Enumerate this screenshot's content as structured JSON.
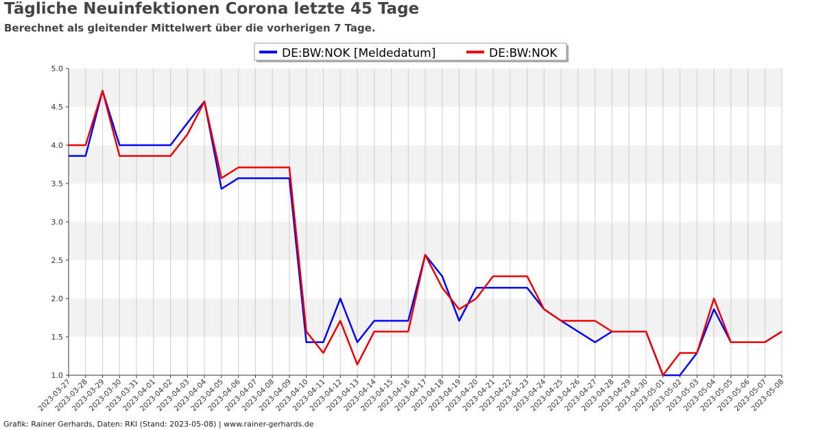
{
  "page": {
    "title": "Tägliche Neuinfektionen Corona letzte 45 Tage",
    "subtitle": "Berechnet als gleitender Mittelwert über die vorherigen 7 Tage.",
    "footer": "Grafik: Rainer Gerhards, Daten: RKI (Stand: 2023-05-08) | www.rainer-gerhards.de"
  },
  "chart_data": {
    "type": "line",
    "title": "Tägliche Neuinfektionen Corona letzte 45 Tage",
    "subtitle": "Berechnet als gleitender Mittelwert über die vorherigen 7 Tage.",
    "xlabel": "",
    "ylabel": "",
    "ylim": [
      1.0,
      5.0
    ],
    "yticks": [
      "1.0",
      "1.5",
      "2.0",
      "2.5",
      "3.0",
      "3.5",
      "4.0",
      "4.5",
      "5.0"
    ],
    "grid": true,
    "legend_position": "top-center",
    "x": [
      "2023-03-27",
      "2023-03-28",
      "2023-03-29",
      "2023-03-30",
      "2023-03-31",
      "2023-04-01",
      "2023-04-02",
      "2023-04-03",
      "2023-04-04",
      "2023-04-05",
      "2023-04-06",
      "2023-04-07",
      "2023-04-08",
      "2023-04-09",
      "2023-04-10",
      "2023-04-11",
      "2023-04-12",
      "2023-04-13",
      "2023-04-14",
      "2023-04-15",
      "2023-04-16",
      "2023-04-17",
      "2023-04-18",
      "2023-04-19",
      "2023-04-20",
      "2023-04-21",
      "2023-04-22",
      "2023-04-23",
      "2023-04-24",
      "2023-04-25",
      "2023-04-26",
      "2023-04-27",
      "2023-04-28",
      "2023-04-29",
      "2023-04-30",
      "2023-05-01",
      "2023-05-02",
      "2023-05-03",
      "2023-05-04",
      "2023-05-05",
      "2023-05-06",
      "2023-05-07",
      "2023-05-08"
    ],
    "series": [
      {
        "name": "DE:BW:NOK [Meldedatum]",
        "color": "#0000ff",
        "values": [
          3.86,
          3.86,
          4.71,
          4.0,
          4.0,
          4.0,
          4.0,
          4.29,
          4.57,
          3.43,
          3.57,
          3.57,
          3.57,
          3.57,
          1.43,
          1.43,
          2.0,
          1.43,
          1.71,
          1.71,
          1.71,
          2.57,
          2.29,
          1.71,
          2.14,
          2.14,
          2.14,
          2.14,
          1.86,
          1.71,
          1.57,
          1.43,
          1.57,
          1.57,
          1.57,
          1.0,
          1.0,
          1.29,
          1.86,
          1.43,
          1.43,
          1.43,
          1.57
        ]
      },
      {
        "name": "DE:BW:NOK",
        "color": "#ee0000",
        "values": [
          4.0,
          4.0,
          4.71,
          3.86,
          3.86,
          3.86,
          3.86,
          4.14,
          4.57,
          3.57,
          3.71,
          3.71,
          3.71,
          3.71,
          1.57,
          1.29,
          1.71,
          1.14,
          1.57,
          1.57,
          1.57,
          2.57,
          2.14,
          1.86,
          2.0,
          2.29,
          2.29,
          2.29,
          1.86,
          1.71,
          1.71,
          1.71,
          1.57,
          1.57,
          1.57,
          1.0,
          1.29,
          1.29,
          2.0,
          1.43,
          1.43,
          1.43,
          1.57
        ]
      }
    ]
  }
}
